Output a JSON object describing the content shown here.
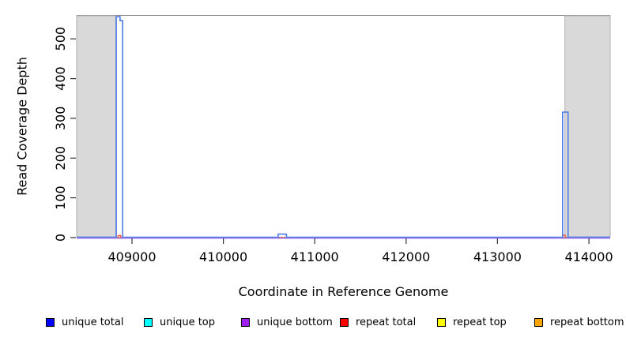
{
  "chart_data": {
    "type": "line",
    "title": "",
    "xlabel": "Coordinate in Reference Genome",
    "ylabel": "Read Coverage Depth",
    "xlim": [
      408395,
      414233
    ],
    "ylim": [
      0,
      560
    ],
    "x_ticks": [
      409000,
      410000,
      411000,
      412000,
      413000,
      414000
    ],
    "y_ticks": [
      0,
      100,
      200,
      300,
      400,
      500
    ],
    "grid": false,
    "plot_border_color": "#878787",
    "shaded_regions": [
      {
        "name": "left-gray-region",
        "x0": 408395,
        "x1": 408823,
        "fill": "#d9d9d9",
        "edge": "#b0b0b0"
      },
      {
        "name": "right-gray-region",
        "x0": 413737,
        "x1": 414233,
        "fill": "#d9d9d9",
        "edge": "#b0b0b0"
      }
    ],
    "series": [
      {
        "name": "unique top",
        "stroke": "#00ffff",
        "width": 1.2,
        "dy": 0,
        "points": [
          [
            408395,
            0
          ],
          [
            414233,
            0
          ]
        ]
      },
      {
        "name": "repeat top",
        "stroke": "#ffff00",
        "width": 1.2,
        "dy": 0,
        "points": [
          [
            408395,
            0
          ],
          [
            414233,
            0
          ]
        ]
      },
      {
        "name": "repeat bottom",
        "stroke": "#ffa500",
        "width": 1.2,
        "dy": 0,
        "points": [
          [
            408395,
            0
          ],
          [
            414233,
            0
          ]
        ]
      },
      {
        "name": "repeat total",
        "stroke": "#ee5544",
        "width": 1.4,
        "dy": 0,
        "points": [
          [
            408395,
            0
          ],
          [
            408848,
            0
          ],
          [
            408848,
            5
          ],
          [
            408878,
            5
          ],
          [
            408878,
            0
          ],
          [
            413714,
            0
          ],
          [
            413714,
            6
          ],
          [
            413740,
            6
          ],
          [
            413740,
            0
          ],
          [
            414233,
            0
          ]
        ]
      },
      {
        "name": "unique total",
        "stroke": "#4d7ce8",
        "width": 1.6,
        "dy": -0.4,
        "points": [
          [
            408395,
            0
          ],
          [
            408828,
            0
          ],
          [
            408828,
            555
          ],
          [
            408870,
            555
          ],
          [
            408870,
            545
          ],
          [
            408898,
            545
          ],
          [
            408898,
            0
          ],
          [
            410600,
            0
          ],
          [
            410600,
            8
          ],
          [
            410690,
            8
          ],
          [
            410690,
            0
          ],
          [
            413712,
            0
          ],
          [
            413712,
            315
          ],
          [
            413772,
            315
          ],
          [
            413772,
            0
          ],
          [
            414233,
            0
          ]
        ]
      },
      {
        "name": "unique bottom",
        "stroke": "#9b74f0",
        "width": 1.5,
        "dy": 0.7,
        "points": [
          [
            408395,
            0
          ],
          [
            414233,
            0
          ]
        ]
      }
    ],
    "legend": {
      "position": "bottom",
      "items": [
        {
          "label": "unique total",
          "color": "#0000ff"
        },
        {
          "label": "unique top",
          "color": "#00ffff"
        },
        {
          "label": "unique bottom",
          "color": "#a020f0"
        },
        {
          "label": "repeat total",
          "color": "#ff0000"
        },
        {
          "label": "repeat top",
          "color": "#ffff00"
        },
        {
          "label": "repeat bottom",
          "color": "#ffa500"
        }
      ]
    }
  }
}
